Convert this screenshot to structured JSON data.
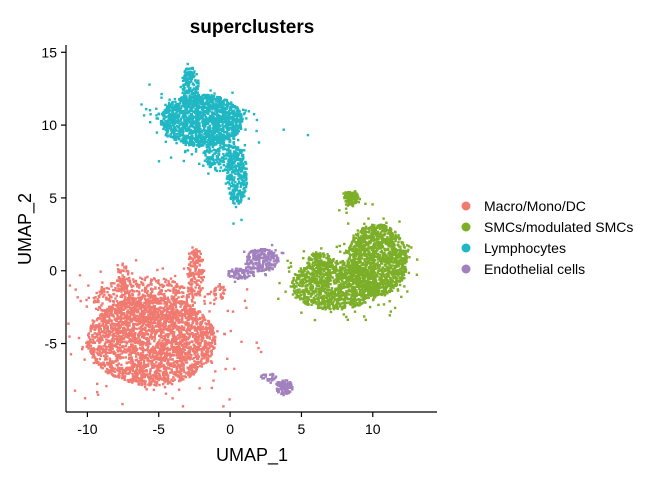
{
  "chart_data": {
    "type": "scatter",
    "title": "superclusters",
    "xlabel": "UMAP_1",
    "ylabel": "UMAP_2",
    "xlim": [
      -11.5,
      14.5
    ],
    "ylim": [
      -9.7,
      15.5
    ],
    "xticks": [
      -10,
      -5,
      0,
      5,
      10
    ],
    "yticks": [
      -5,
      0,
      5,
      10,
      15
    ],
    "grid": false,
    "legend_position": "right",
    "series": [
      {
        "name": "Macro/Mono/DC",
        "color": "#F07A70",
        "clusters": [
          {
            "cx": -5.5,
            "cy": -4.8,
            "rx": 4.5,
            "ry": 3.1,
            "n": 2600
          },
          {
            "cx": -6.0,
            "cy": -2.0,
            "rx": 3.6,
            "ry": 1.6,
            "n": 500
          },
          {
            "cx": -2.4,
            "cy": -0.2,
            "rx": 0.6,
            "ry": 1.7,
            "n": 160
          },
          {
            "cx": -7.5,
            "cy": -0.5,
            "rx": 0.4,
            "ry": 1.0,
            "n": 50
          },
          {
            "cx": -0.8,
            "cy": -1.5,
            "rx": 0.5,
            "ry": 0.6,
            "n": 30
          }
        ]
      },
      {
        "name": "SMCs/modulated SMCs",
        "color": "#7CAE28",
        "clusters": [
          {
            "cx": 10.3,
            "cy": 0.7,
            "rx": 2.1,
            "ry": 2.5,
            "n": 1300
          },
          {
            "cx": 7.3,
            "cy": -1.0,
            "rx": 3.0,
            "ry": 1.7,
            "n": 1100
          },
          {
            "cx": 6.3,
            "cy": 0.6,
            "rx": 0.9,
            "ry": 0.7,
            "n": 120
          },
          {
            "cx": 8.5,
            "cy": 5.0,
            "rx": 0.5,
            "ry": 0.5,
            "n": 120
          }
        ]
      },
      {
        "name": "Lymphocytes",
        "color": "#1FB7C3",
        "clusters": [
          {
            "cx": -2.0,
            "cy": 10.3,
            "rx": 2.9,
            "ry": 1.8,
            "n": 1500
          },
          {
            "cx": -2.8,
            "cy": 12.7,
            "rx": 0.6,
            "ry": 1.3,
            "n": 160
          },
          {
            "cx": 0.5,
            "cy": 6.5,
            "rx": 0.7,
            "ry": 2.0,
            "n": 280
          },
          {
            "cx": -0.6,
            "cy": 8.0,
            "rx": 1.2,
            "ry": 1.2,
            "n": 200
          }
        ]
      },
      {
        "name": "Endothelial cells",
        "color": "#A281BF",
        "clusters": [
          {
            "cx": 2.2,
            "cy": 0.7,
            "rx": 1.2,
            "ry": 0.8,
            "n": 230
          },
          {
            "cx": 0.8,
            "cy": -0.2,
            "rx": 1.0,
            "ry": 0.4,
            "n": 80
          },
          {
            "cx": 3.8,
            "cy": -8.0,
            "rx": 0.6,
            "ry": 0.5,
            "n": 100
          },
          {
            "cx": 2.7,
            "cy": -7.3,
            "rx": 0.6,
            "ry": 0.25,
            "n": 25
          }
        ]
      }
    ]
  }
}
